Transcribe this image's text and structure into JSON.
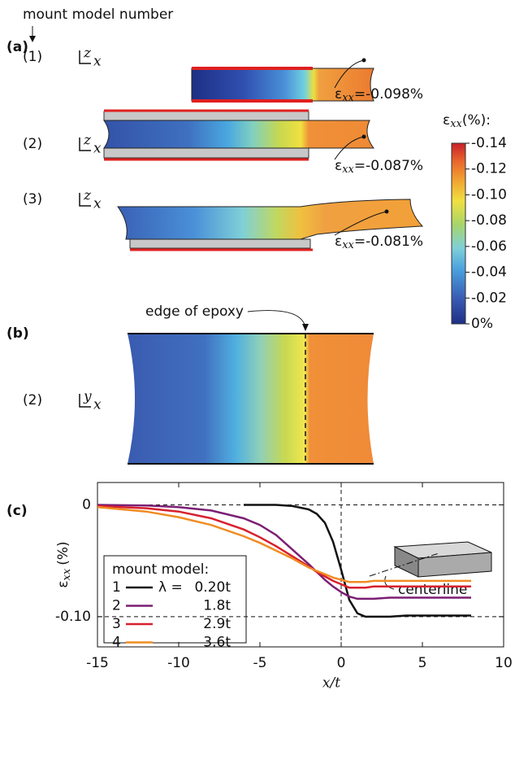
{
  "panel_a": {
    "label": "(a)",
    "header": "mount model number",
    "mounts": [
      {
        "number": "(1)",
        "axes": [
          "z",
          "x"
        ],
        "annotation": {
          "symbol": "ε",
          "subscript": "xx",
          "text": "=-0.098%"
        }
      },
      {
        "number": "(2)",
        "axes": [
          "z",
          "x"
        ],
        "annotation": {
          "symbol": "ε",
          "subscript": "xx",
          "text": "=-0.087%"
        }
      },
      {
        "number": "(3)",
        "axes": [
          "z",
          "x"
        ],
        "annotation": {
          "symbol": "ε",
          "subscript": "xx",
          "text": "=-0.081%"
        }
      }
    ]
  },
  "colorbar": {
    "symbol": "ε",
    "subscript": "xx",
    "unit": "(%):",
    "range": [
      -0.14,
      0
    ],
    "ticks": [
      -0.14,
      -0.12,
      {
        "value": -0.1,
        "label": "-0.10"
      },
      -0.08,
      -0.06,
      -0.04,
      -0.02,
      {
        "value": 0,
        "label": "0%"
      }
    ]
  },
  "panel_b": {
    "label": "(b)",
    "number": "(2)",
    "axes": [
      "y",
      "x"
    ],
    "annotation": "edge of epoxy"
  },
  "chart_data": {
    "type": "line",
    "label": "(c)",
    "xlabel": "x/t",
    "ylabel": {
      "symbol": "ε",
      "subscript": "xx",
      "unit": "(%)"
    },
    "xlim": [
      -15,
      10
    ],
    "xticks": [
      -15,
      -10,
      -5,
      0,
      5,
      10
    ],
    "ylim": [
      -0.127,
      0.02
    ],
    "yticks": [
      0,
      {
        "value": -0.1,
        "label": "-0.10"
      }
    ],
    "hlines": [
      0,
      -0.1
    ],
    "vlines": [
      0
    ],
    "legend_title": "mount model:",
    "lambda_label": "λ =",
    "inset_label": "centerline",
    "x": [
      -15,
      -12,
      -10,
      -8,
      -6,
      -5,
      -4,
      -3,
      -2,
      -1.5,
      -1,
      -0.5,
      0,
      0.5,
      1,
      1.5,
      2,
      3,
      4,
      5,
      6,
      8
    ],
    "series": [
      {
        "name": "1",
        "lambda": "0.20t",
        "color": "#111111",
        "values": [
          null,
          null,
          null,
          null,
          0,
          0,
          0,
          -0.001,
          -0.004,
          -0.008,
          -0.016,
          -0.033,
          -0.058,
          -0.085,
          -0.097,
          -0.1,
          -0.1,
          -0.1,
          -0.099,
          -0.099,
          -0.099,
          -0.099
        ]
      },
      {
        "name": "2",
        "lambda": "1.8t",
        "color": "#7b1f73",
        "values": [
          0,
          -0.0005,
          -0.002,
          -0.005,
          -0.012,
          -0.018,
          -0.027,
          -0.04,
          -0.053,
          -0.06,
          -0.067,
          -0.073,
          -0.078,
          -0.082,
          -0.084,
          -0.084,
          -0.084,
          -0.083,
          -0.083,
          -0.083,
          -0.083,
          -0.083
        ]
      },
      {
        "name": "3",
        "lambda": "2.9t",
        "color": "#d7202e",
        "values": [
          -0.001,
          -0.003,
          -0.006,
          -0.012,
          -0.022,
          -0.029,
          -0.037,
          -0.046,
          -0.055,
          -0.06,
          -0.064,
          -0.068,
          -0.071,
          -0.074,
          -0.074,
          -0.074,
          -0.073,
          -0.073,
          -0.073,
          -0.073,
          -0.073,
          -0.073
        ]
      },
      {
        "name": "4",
        "lambda": "3.6t",
        "color": "#f08c22",
        "values": [
          -0.002,
          -0.006,
          -0.011,
          -0.018,
          -0.028,
          -0.034,
          -0.041,
          -0.048,
          -0.056,
          -0.059,
          -0.062,
          -0.065,
          -0.067,
          -0.069,
          -0.069,
          -0.069,
          -0.068,
          -0.068,
          -0.068,
          -0.068,
          -0.068,
          -0.068
        ]
      }
    ]
  }
}
